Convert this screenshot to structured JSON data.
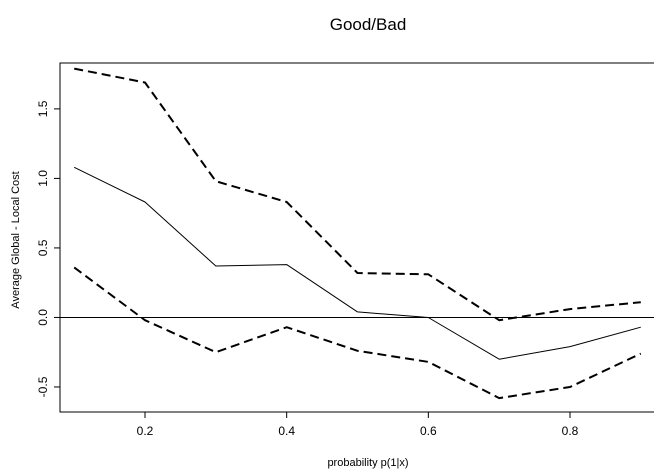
{
  "chart_data": {
    "type": "line",
    "title": "Good/Bad",
    "xlabel": "probability p(1|x)",
    "ylabel": "Average Global - Local Cost",
    "x": [
      0.1,
      0.2,
      0.3,
      0.4,
      0.5,
      0.6,
      0.7,
      0.8,
      0.9
    ],
    "xticks": [
      0.2,
      0.4,
      0.6,
      0.8
    ],
    "xtick_labels": [
      "0.2",
      "0.4",
      "0.6",
      "0.8"
    ],
    "yticks": [
      -0.5,
      0.0,
      0.5,
      1.0,
      1.5
    ],
    "ytick_labels": [
      "-0.5",
      "0.0",
      "0.5",
      "1.0",
      "1.5"
    ],
    "xlim": [
      0.08,
      0.92
    ],
    "ylim": [
      -0.68,
      1.83
    ],
    "reference_line_y": 0,
    "grid": false,
    "series": [
      {
        "style": "solid",
        "color": "#000000",
        "values": [
          1.08,
          0.83,
          0.37,
          0.38,
          0.04,
          0.0,
          -0.3,
          -0.21,
          -0.07
        ]
      },
      {
        "style": "dashed",
        "color": "#000000",
        "values": [
          1.79,
          1.69,
          0.98,
          0.83,
          0.32,
          0.31,
          -0.02,
          0.06,
          0.11
        ]
      },
      {
        "style": "dashed",
        "color": "#000000",
        "values": [
          0.36,
          -0.02,
          -0.25,
          -0.07,
          -0.24,
          -0.32,
          -0.58,
          -0.5,
          -0.26
        ]
      }
    ]
  }
}
